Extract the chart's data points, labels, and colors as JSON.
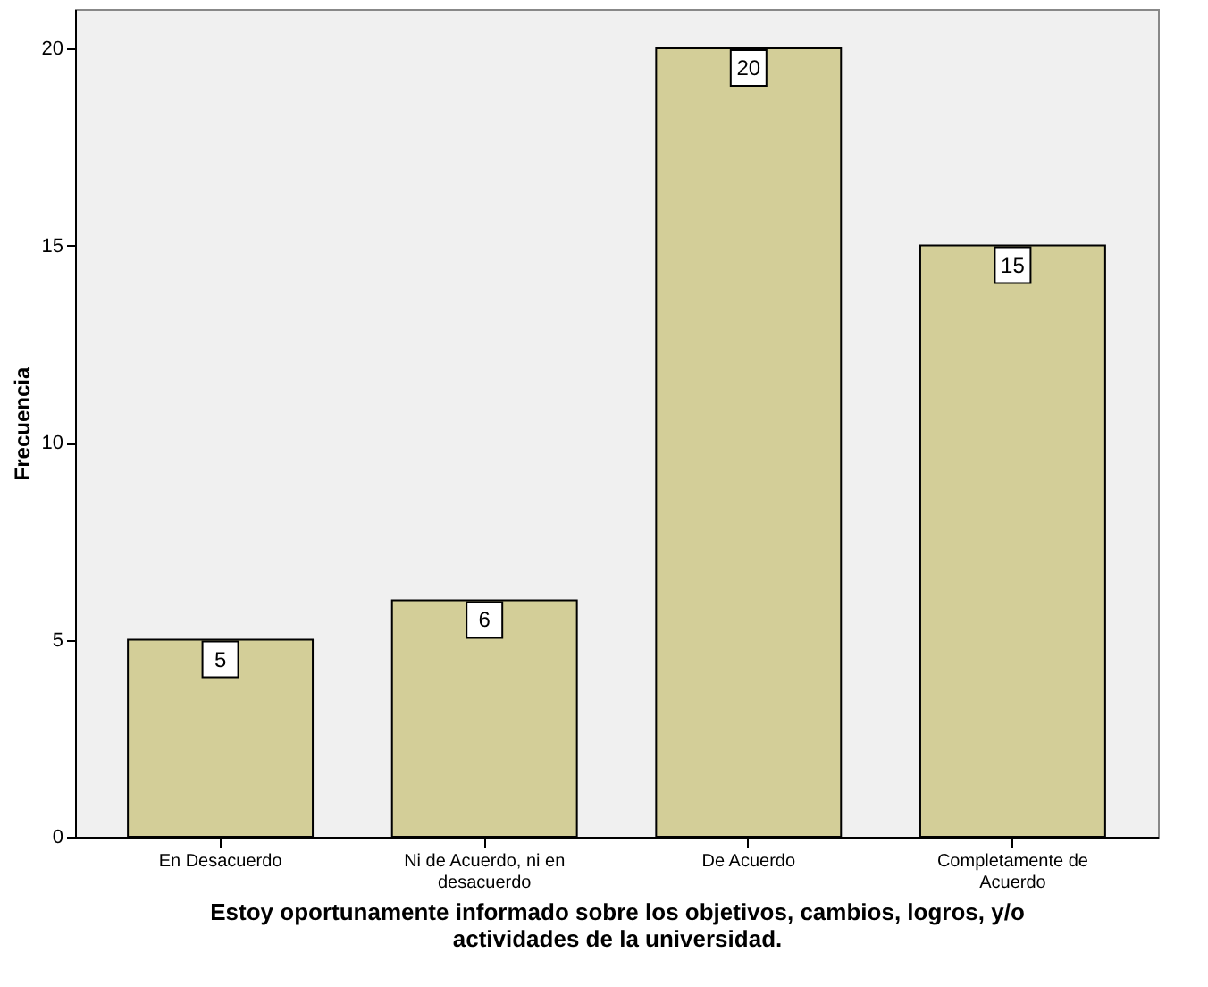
{
  "chart_data": {
    "type": "bar",
    "xlabel": "Estoy oportunamente informado sobre los objetivos, cambios, logros, y/o actividades de la universidad.",
    "ylabel": "Frecuencia",
    "categories": [
      "En Desacuerdo",
      "Ni de Acuerdo, ni en desacuerdo",
      "De Acuerdo",
      "Completamente de Acuerdo"
    ],
    "values": [
      5,
      6,
      20,
      15
    ],
    "color": "#d3ce98",
    "ylim": [
      0,
      21
    ],
    "yticks": [
      0,
      5,
      10,
      15,
      20
    ],
    "grid": false,
    "data_labels": true
  }
}
